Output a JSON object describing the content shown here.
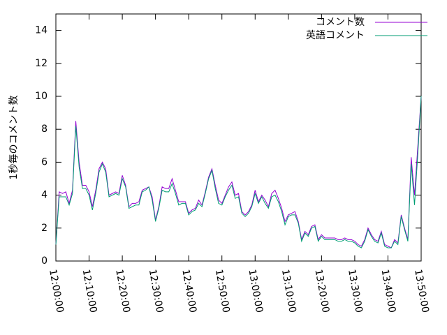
{
  "chart_data": {
    "type": "line",
    "y_label": "1秒毎のコメント数",
    "x": [
      "12:00:00",
      "12:01:00",
      "12:02:00",
      "12:03:00",
      "12:04:00",
      "12:05:00",
      "12:06:00",
      "12:07:00",
      "12:08:00",
      "12:09:00",
      "12:10:00",
      "12:11:00",
      "12:12:00",
      "12:13:00",
      "12:14:00",
      "12:15:00",
      "12:16:00",
      "12:17:00",
      "12:18:00",
      "12:19:00",
      "12:20:00",
      "12:21:00",
      "12:22:00",
      "12:23:00",
      "12:24:00",
      "12:25:00",
      "12:26:00",
      "12:27:00",
      "12:28:00",
      "12:29:00",
      "12:30:00",
      "12:31:00",
      "12:32:00",
      "12:33:00",
      "12:34:00",
      "12:35:00",
      "12:36:00",
      "12:37:00",
      "12:38:00",
      "12:39:00",
      "12:40:00",
      "12:41:00",
      "12:42:00",
      "12:43:00",
      "12:44:00",
      "12:45:00",
      "12:46:00",
      "12:47:00",
      "12:48:00",
      "12:49:00",
      "12:50:00",
      "12:51:00",
      "12:52:00",
      "12:53:00",
      "12:54:00",
      "12:55:00",
      "12:56:00",
      "12:57:00",
      "12:58:00",
      "12:59:00",
      "13:00:00",
      "13:01:00",
      "13:02:00",
      "13:03:00",
      "13:04:00",
      "13:05:00",
      "13:06:00",
      "13:07:00",
      "13:08:00",
      "13:09:00",
      "13:10:00",
      "13:11:00",
      "13:12:00",
      "13:13:00",
      "13:14:00",
      "13:15:00",
      "13:16:00",
      "13:17:00",
      "13:18:00",
      "13:19:00",
      "13:20:00",
      "13:21:00",
      "13:22:00",
      "13:23:00",
      "13:24:00",
      "13:25:00",
      "13:26:00",
      "13:27:00",
      "13:28:00",
      "13:29:00",
      "13:30:00",
      "13:31:00",
      "13:32:00",
      "13:33:00",
      "13:34:00",
      "13:35:00",
      "13:36:00",
      "13:37:00",
      "13:38:00",
      "13:39:00",
      "13:40:00",
      "13:41:00",
      "13:42:00",
      "13:43:00",
      "13:44:00",
      "13:45:00",
      "13:46:00",
      "13:47:00",
      "13:48:00",
      "13:49:00",
      "13:50:00"
    ],
    "series": [
      {
        "name": "コメント数",
        "color": "#9400d3",
        "values": [
          1.0,
          4.2,
          4.1,
          4.2,
          3.5,
          4.3,
          8.5,
          6.0,
          4.6,
          4.6,
          4.2,
          3.3,
          4.3,
          5.6,
          6.0,
          5.6,
          4.0,
          4.1,
          4.2,
          4.1,
          5.2,
          4.6,
          3.3,
          3.5,
          3.5,
          3.6,
          4.3,
          4.4,
          4.5,
          3.9,
          2.5,
          3.3,
          4.5,
          4.4,
          4.4,
          5.0,
          4.3,
          3.6,
          3.6,
          3.6,
          2.9,
          3.1,
          3.2,
          3.7,
          3.4,
          4.2,
          5.1,
          5.6,
          4.6,
          3.7,
          3.5,
          4.0,
          4.5,
          4.8,
          4.0,
          4.1,
          3.0,
          2.8,
          3.0,
          3.4,
          4.3,
          3.6,
          4.0,
          3.7,
          3.3,
          4.1,
          4.3,
          3.8,
          3.2,
          2.4,
          2.8,
          2.9,
          3.0,
          2.4,
          1.3,
          1.8,
          1.6,
          2.1,
          2.2,
          1.3,
          1.6,
          1.4,
          1.4,
          1.4,
          1.4,
          1.3,
          1.3,
          1.4,
          1.3,
          1.3,
          1.2,
          1.0,
          0.9,
          1.3,
          2.0,
          1.6,
          1.3,
          1.2,
          1.8,
          1.0,
          0.9,
          0.8,
          1.3,
          1.1,
          2.8,
          2.0,
          1.3,
          6.3,
          4.0,
          7.0,
          10.0
        ]
      },
      {
        "name": "英語コメント",
        "color": "#009e73",
        "values": [
          1.0,
          3.9,
          3.9,
          3.9,
          3.4,
          4.1,
          8.2,
          5.7,
          4.4,
          4.4,
          4.0,
          3.1,
          4.1,
          5.4,
          5.9,
          5.4,
          3.9,
          4.0,
          4.1,
          4.0,
          5.0,
          4.5,
          3.2,
          3.3,
          3.4,
          3.4,
          4.2,
          4.3,
          4.5,
          3.7,
          2.4,
          3.2,
          4.3,
          4.2,
          4.2,
          4.7,
          4.1,
          3.4,
          3.5,
          3.5,
          2.8,
          3.0,
          3.1,
          3.5,
          3.3,
          4.1,
          5.0,
          5.5,
          4.4,
          3.5,
          3.4,
          3.9,
          4.3,
          4.6,
          3.8,
          3.9,
          2.9,
          2.7,
          2.9,
          3.3,
          4.1,
          3.5,
          3.9,
          3.5,
          3.2,
          3.9,
          4.0,
          3.6,
          3.0,
          2.2,
          2.7,
          2.8,
          2.8,
          2.3,
          1.2,
          1.7,
          1.5,
          2.0,
          2.1,
          1.2,
          1.5,
          1.3,
          1.3,
          1.3,
          1.3,
          1.2,
          1.2,
          1.3,
          1.2,
          1.2,
          1.1,
          0.9,
          0.8,
          1.2,
          1.9,
          1.5,
          1.2,
          1.1,
          1.7,
          0.9,
          0.8,
          0.8,
          1.2,
          1.0,
          2.7,
          1.9,
          1.2,
          5.9,
          3.4,
          6.5,
          10.0
        ]
      }
    ],
    "xlim": [
      "12:00:00",
      "13:50:00"
    ],
    "xticks": [
      "12:00:00",
      "12:10:00",
      "12:20:00",
      "12:30:00",
      "12:40:00",
      "12:50:00",
      "13:00:00",
      "13:10:00",
      "13:20:00",
      "13:30:00",
      "13:40:00",
      "13:50:00"
    ],
    "ylim": [
      0,
      15
    ],
    "yticks": [
      0,
      2,
      4,
      6,
      8,
      10,
      12,
      14
    ],
    "legend": "top-right"
  }
}
